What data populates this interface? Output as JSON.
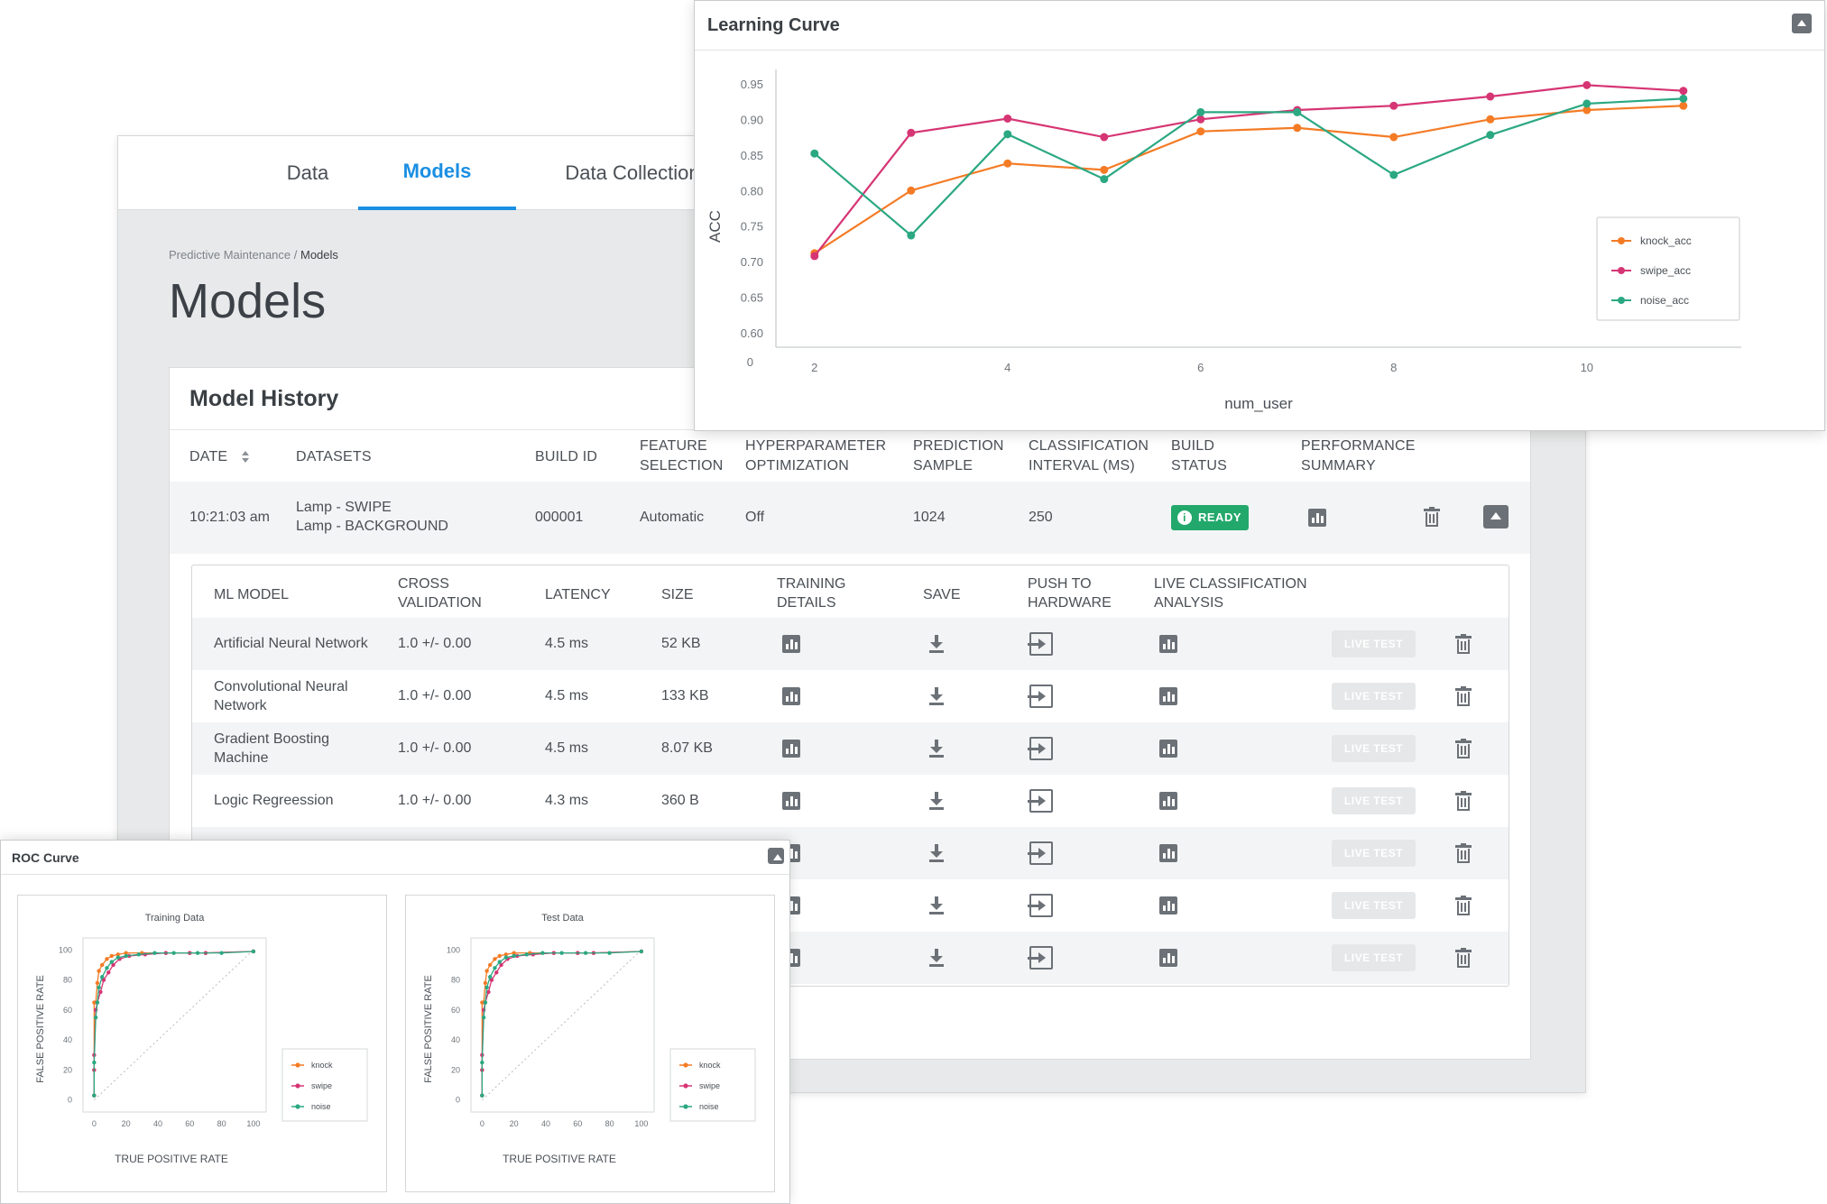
{
  "tabs": [
    {
      "label": "Data",
      "active": false
    },
    {
      "label": "Models",
      "active": true
    },
    {
      "label": "Data Collection",
      "active": false
    }
  ],
  "breadcrumb": {
    "parent": "Predictive Maintenance",
    "separator": " / ",
    "current": "Models"
  },
  "page_title": "Models",
  "model_history": {
    "title": "Model History",
    "columns": [
      {
        "label": "DATE",
        "l2": ""
      },
      {
        "label": "DATASETS",
        "l2": ""
      },
      {
        "label": "BUILD ID",
        "l2": ""
      },
      {
        "label": "FEATURE",
        "l2": "SELECTION"
      },
      {
        "label": "HYPERPARAMETER",
        "l2": "OPTIMIZATION"
      },
      {
        "label": "PREDICTION",
        "l2": "SAMPLE"
      },
      {
        "label": "CLASSIFICATION",
        "l2": "INTERVAL (ms)"
      },
      {
        "label": "BUILD",
        "l2": "STATUS"
      },
      {
        "label": "PERFORMANCE",
        "l2": "SUMMARY"
      }
    ],
    "row": {
      "date": "10:21:03 am",
      "dataset_1": "Lamp - SWIPE",
      "dataset_2": "Lamp - BACKGROUND",
      "build_id": "000001",
      "feature_selection": "Automatic",
      "hyperparameter": "Off",
      "prediction_sample": "1024",
      "interval": "250",
      "status": "READY"
    }
  },
  "model_table": {
    "columns": [
      {
        "label": "ML MODEL",
        "l2": ""
      },
      {
        "label": "CROSS",
        "l2": "VALIDATION"
      },
      {
        "label": "LATENCY",
        "l2": ""
      },
      {
        "label": "SIZE",
        "l2": ""
      },
      {
        "label": "TRAINING",
        "l2": "DETAILS"
      },
      {
        "label": "SAVE",
        "l2": ""
      },
      {
        "label": "PUSH TO",
        "l2": "HARDWARE"
      },
      {
        "label": "LIVE CLASSIFICATION",
        "l2": "ANALYSIS"
      }
    ],
    "live_test_label": "LIVE TEST",
    "rows": [
      {
        "name": "Artificial Neural Network",
        "name2": "",
        "cv": "1.0 +/- 0.00",
        "latency": "4.5 ms",
        "size": "52 KB"
      },
      {
        "name": "Convolutional Neural",
        "name2": "Network",
        "cv": "1.0 +/- 0.00",
        "latency": "4.5 ms",
        "size": "133 KB"
      },
      {
        "name": "Gradient Boosting",
        "name2": "Machine",
        "cv": "1.0 +/- 0.00",
        "latency": "4.5 ms",
        "size": "8.07 KB"
      },
      {
        "name": "Logic Regreession",
        "name2": "",
        "cv": "1.0 +/- 0.00",
        "latency": "4.3 ms",
        "size": "360 B"
      },
      {
        "name": "",
        "name2": "",
        "cv": "",
        "latency": "",
        "size": ""
      },
      {
        "name": "",
        "name2": "",
        "cv": "",
        "latency": "",
        "size": ""
      },
      {
        "name": "",
        "name2": "",
        "cv": "",
        "latency": "",
        "size": ""
      }
    ]
  },
  "learning_curve": {
    "window_title": "Learning Curve",
    "chart_data": {
      "type": "line",
      "xlabel": "num_user",
      "ylabel": "ACC",
      "x": [
        2,
        3,
        4,
        5,
        6,
        7,
        8,
        9,
        10,
        11
      ],
      "x_ticks": [
        2,
        4,
        6,
        8,
        10
      ],
      "y_ticks": [
        0.6,
        0.65,
        0.7,
        0.75,
        0.8,
        0.85,
        0.9,
        0.95
      ],
      "y_tick_labels": [
        "0.60",
        "0.65",
        "0.70",
        "0.75",
        "0.80",
        "0.85",
        "0.90",
        "0.95"
      ],
      "y_origin_label": "0",
      "ylim": [
        0.58,
        0.97
      ],
      "xlim": [
        1.6,
        11.6
      ],
      "legend": "right",
      "series": [
        {
          "name": "knock_acc",
          "color": "#f47b25",
          "values": [
            0.712,
            0.8,
            0.838,
            0.829,
            0.883,
            0.888,
            0.875,
            0.9,
            0.913,
            0.919
          ]
        },
        {
          "name": "swipe_acc",
          "color": "#d63574",
          "values": [
            0.708,
            0.881,
            0.901,
            0.875,
            0.9,
            0.913,
            0.919,
            0.932,
            0.948,
            0.94
          ]
        },
        {
          "name": "noise_acc",
          "color": "#2ba882",
          "values": [
            0.852,
            0.737,
            0.879,
            0.816,
            0.91,
            0.91,
            0.822,
            0.878,
            0.922,
            0.929
          ]
        }
      ]
    }
  },
  "roc_curve": {
    "window_title": "ROC Curve",
    "chart_data": [
      {
        "type": "line",
        "title": "Training Data",
        "xlabel": "TRUE POSITIVE RATE",
        "ylabel": "FALSE POSITIVE RATE",
        "x_ticks": [
          0,
          20,
          40,
          60,
          80,
          100
        ],
        "y_ticks": [
          0,
          20,
          40,
          60,
          80,
          100
        ],
        "xlim": [
          -7,
          108
        ],
        "ylim": [
          -8,
          108
        ],
        "legend": "right",
        "series": [
          {
            "name": "knock",
            "color": "#f47b25",
            "x": [
              0,
              0,
              0,
              1,
              2,
              3,
              5,
              8,
              11,
              15,
              20,
              30,
              45,
              60,
              70,
              100
            ],
            "y": [
              3,
              20,
              65,
              65,
              78,
              86,
              90,
              94,
              96,
              97,
              98,
              98,
              98,
              98,
              98,
              99
            ]
          },
          {
            "name": "swipe",
            "color": "#d63574",
            "x": [
              0,
              0,
              0,
              1,
              2,
              4,
              6,
              9,
              12,
              16,
              22,
              32,
              45,
              60,
              70,
              100
            ],
            "y": [
              3,
              20,
              30,
              60,
              65,
              72,
              80,
              85,
              90,
              94,
              96,
              97,
              98,
              98,
              98,
              99
            ]
          },
          {
            "name": "noise",
            "color": "#2ba882",
            "x": [
              0,
              0,
              1,
              2,
              3,
              5,
              8,
              11,
              15,
              20,
              28,
              38,
              50,
              65,
              80,
              100
            ],
            "y": [
              3,
              25,
              55,
              65,
              75,
              82,
              88,
              92,
              95,
              96,
              97,
              98,
              98,
              98,
              98,
              99
            ]
          }
        ]
      },
      {
        "type": "line",
        "title": "Test Data",
        "xlabel": "TRUE POSITIVE RATE",
        "ylabel": "FALSE POSITIVE RATE",
        "x_ticks": [
          0,
          20,
          40,
          60,
          80,
          100
        ],
        "y_ticks": [
          0,
          20,
          40,
          60,
          80,
          100
        ],
        "xlim": [
          -7,
          108
        ],
        "ylim": [
          -8,
          108
        ],
        "legend": "right",
        "series": [
          {
            "name": "knock",
            "color": "#f47b25",
            "x": [
              0,
              0,
              0,
              1,
              2,
              3,
              5,
              8,
              11,
              15,
              20,
              30,
              45,
              60,
              70,
              100
            ],
            "y": [
              3,
              20,
              65,
              65,
              78,
              86,
              90,
              94,
              96,
              97,
              98,
              98,
              98,
              98,
              98,
              99
            ]
          },
          {
            "name": "swipe",
            "color": "#d63574",
            "x": [
              0,
              0,
              0,
              1,
              2,
              4,
              6,
              9,
              12,
              16,
              22,
              32,
              45,
              60,
              70,
              100
            ],
            "y": [
              3,
              20,
              30,
              60,
              65,
              72,
              80,
              85,
              90,
              94,
              96,
              97,
              98,
              98,
              98,
              99
            ]
          },
          {
            "name": "noise",
            "color": "#2ba882",
            "x": [
              0,
              0,
              1,
              2,
              3,
              5,
              8,
              11,
              15,
              20,
              28,
              38,
              50,
              65,
              80,
              100
            ],
            "y": [
              3,
              25,
              55,
              65,
              75,
              82,
              88,
              92,
              95,
              96,
              97,
              98,
              98,
              98,
              98,
              99
            ]
          }
        ]
      }
    ]
  }
}
